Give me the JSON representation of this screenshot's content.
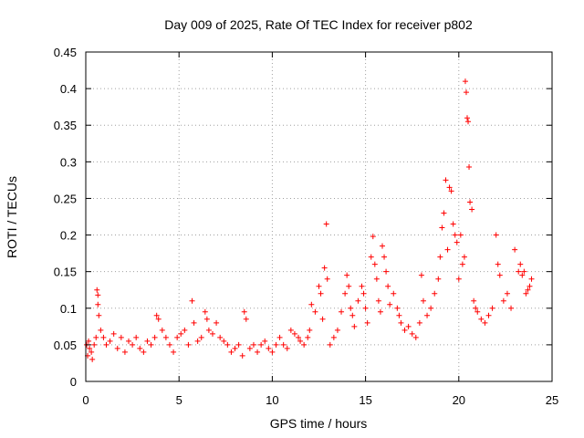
{
  "colors": {
    "series": "#ff0000",
    "grid": "#a0a0a0",
    "axes": "#000000"
  },
  "chart_data": {
    "type": "scatter",
    "title": "Day 009 of 2025, Rate Of TEC Index for receiver p802",
    "xlabel": "GPS time / hours",
    "ylabel": "ROTI / TECUs",
    "xlim": [
      0,
      25
    ],
    "ylim": [
      0,
      0.45
    ],
    "x_ticks": [
      0,
      5,
      10,
      15,
      20,
      25
    ],
    "x_tick_labels": [
      "0",
      "5",
      "10",
      "15",
      "20",
      "25"
    ],
    "y_ticks": [
      0,
      0.05,
      0.1,
      0.15,
      0.2,
      0.25,
      0.3,
      0.35,
      0.4,
      0.45
    ],
    "y_tick_labels": [
      "0",
      "0.05",
      "0.1",
      "0.15",
      "0.2",
      "0.25",
      "0.3",
      "0.35",
      "0.4",
      "0.45"
    ],
    "grid": true,
    "marker": "plus",
    "series": [
      {
        "name": "ROTI",
        "x": [
          0.05,
          0.1,
          0.15,
          0.2,
          0.3,
          0.35,
          0.45,
          0.55,
          0.6,
          0.65,
          0.65,
          0.7,
          0.8,
          0.95,
          1.1,
          1.3,
          1.5,
          1.7,
          1.9,
          2.1,
          2.3,
          2.5,
          2.7,
          2.9,
          3.1,
          3.3,
          3.5,
          3.7,
          3.8,
          3.9,
          4.1,
          4.3,
          4.5,
          4.7,
          4.9,
          5.1,
          5.3,
          5.5,
          5.7,
          5.8,
          6.0,
          6.2,
          6.4,
          6.5,
          6.6,
          6.8,
          7.0,
          7.2,
          7.4,
          7.6,
          7.8,
          8.0,
          8.2,
          8.4,
          8.5,
          8.6,
          8.8,
          9.0,
          9.2,
          9.4,
          9.6,
          9.8,
          10.0,
          10.2,
          10.4,
          10.6,
          10.8,
          11.0,
          11.2,
          11.4,
          11.5,
          11.7,
          11.9,
          12.0,
          12.1,
          12.3,
          12.5,
          12.6,
          12.7,
          12.8,
          12.9,
          12.95,
          13.1,
          13.3,
          13.5,
          13.7,
          13.9,
          14.0,
          14.1,
          14.2,
          14.3,
          14.4,
          14.6,
          14.8,
          14.9,
          15.0,
          15.1,
          15.3,
          15.4,
          15.5,
          15.6,
          15.7,
          15.8,
          15.9,
          16.0,
          16.1,
          16.2,
          16.3,
          16.5,
          16.7,
          16.8,
          16.9,
          17.1,
          17.3,
          17.5,
          17.7,
          17.9,
          18.0,
          18.1,
          18.3,
          18.5,
          18.7,
          18.9,
          19.0,
          19.1,
          19.2,
          19.3,
          19.4,
          19.5,
          19.6,
          19.7,
          19.8,
          19.9,
          20.0,
          20.1,
          20.2,
          20.3,
          20.35,
          20.4,
          20.45,
          20.5,
          20.55,
          20.6,
          20.7,
          20.8,
          20.9,
          21.0,
          21.2,
          21.4,
          21.6,
          21.8,
          22.0,
          22.1,
          22.2,
          22.4,
          22.6,
          22.8,
          23.0,
          23.2,
          23.3,
          23.4,
          23.5,
          23.6,
          23.7,
          23.8,
          23.9
        ],
        "values": [
          0.05,
          0.035,
          0.055,
          0.045,
          0.04,
          0.03,
          0.05,
          0.06,
          0.125,
          0.118,
          0.105,
          0.09,
          0.07,
          0.06,
          0.05,
          0.055,
          0.065,
          0.045,
          0.06,
          0.04,
          0.055,
          0.05,
          0.06,
          0.045,
          0.04,
          0.055,
          0.05,
          0.06,
          0.09,
          0.085,
          0.07,
          0.06,
          0.05,
          0.04,
          0.06,
          0.065,
          0.07,
          0.05,
          0.11,
          0.08,
          0.055,
          0.06,
          0.095,
          0.085,
          0.07,
          0.065,
          0.08,
          0.06,
          0.055,
          0.05,
          0.04,
          0.045,
          0.05,
          0.035,
          0.095,
          0.085,
          0.045,
          0.05,
          0.04,
          0.05,
          0.055,
          0.045,
          0.04,
          0.05,
          0.06,
          0.05,
          0.045,
          0.07,
          0.065,
          0.06,
          0.055,
          0.05,
          0.06,
          0.07,
          0.105,
          0.095,
          0.13,
          0.12,
          0.085,
          0.155,
          0.215,
          0.14,
          0.05,
          0.06,
          0.07,
          0.095,
          0.12,
          0.145,
          0.13,
          0.1,
          0.09,
          0.075,
          0.11,
          0.13,
          0.12,
          0.1,
          0.08,
          0.17,
          0.198,
          0.16,
          0.14,
          0.11,
          0.095,
          0.185,
          0.17,
          0.15,
          0.13,
          0.105,
          0.12,
          0.1,
          0.09,
          0.08,
          0.07,
          0.075,
          0.065,
          0.06,
          0.08,
          0.145,
          0.11,
          0.09,
          0.1,
          0.12,
          0.14,
          0.17,
          0.21,
          0.23,
          0.275,
          0.18,
          0.265,
          0.26,
          0.215,
          0.2,
          0.19,
          0.14,
          0.2,
          0.16,
          0.17,
          0.41,
          0.395,
          0.36,
          0.355,
          0.293,
          0.245,
          0.235,
          0.11,
          0.1,
          0.095,
          0.085,
          0.08,
          0.09,
          0.1,
          0.2,
          0.16,
          0.145,
          0.11,
          0.12,
          0.1,
          0.18,
          0.15,
          0.16,
          0.145,
          0.15,
          0.12,
          0.125,
          0.13,
          0.14
        ]
      }
    ]
  }
}
